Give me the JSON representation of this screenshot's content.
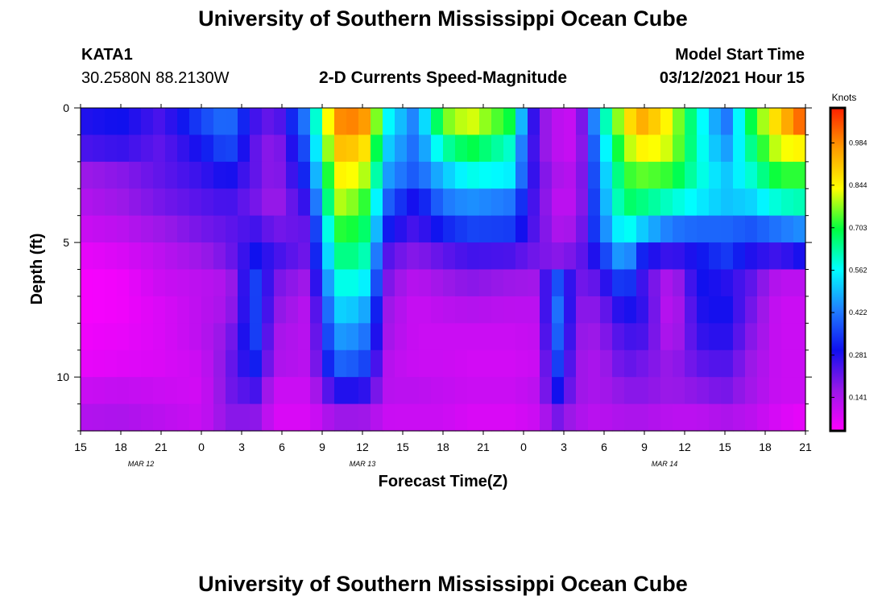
{
  "header": {
    "title": "University of Southern Mississippi Ocean Cube",
    "station_id": "KATA1",
    "station_coords": "30.2580N 88.2130W",
    "subtitle": "2-D Currents Speed-Magnitude",
    "model_label": "Model Start Time",
    "model_time": "03/12/2021 Hour 15"
  },
  "footer": {
    "title": "University of Southern Mississippi Ocean Cube"
  },
  "chart_data": {
    "type": "heatmap",
    "title": "2-D Currents Speed-Magnitude",
    "xlabel": "Forecast Time(Z)",
    "ylabel": "Depth (ft)",
    "x_ticks": [
      "15",
      "18",
      "21",
      "0",
      "3",
      "6",
      "9",
      "12",
      "15",
      "18",
      "21",
      "0",
      "3",
      "6",
      "9",
      "12",
      "15",
      "18",
      "21"
    ],
    "x_range_hours": [
      0,
      54
    ],
    "date_labels": [
      {
        "text": "MAR 12",
        "hour": 4.5
      },
      {
        "text": "MAR 13",
        "hour": 21
      },
      {
        "text": "MAR 14",
        "hour": 43.5
      }
    ],
    "y_ticks": [
      0,
      5,
      10
    ],
    "ylim": [
      0,
      12
    ],
    "y_inverted": true,
    "colorbar": {
      "label": "Knots",
      "ticks": [
        "0.141",
        "0.281",
        "0.422",
        "0.562",
        "0.703",
        "0.844",
        "0.984"
      ],
      "range": [
        0.03,
        1.1
      ],
      "colors": [
        "#ff00ff",
        "#9a18e8",
        "#1010ee",
        "#2080ff",
        "#00ffff",
        "#00ff40",
        "#ffff00",
        "#ff9c00",
        "#ff2000"
      ]
    },
    "row_depths_ft": [
      0.5,
      1.5,
      2.5,
      3.5,
      4.5,
      5.5,
      6.5,
      7.5,
      8.5,
      9.5,
      10.5,
      11.5
    ],
    "time_keys_hours": [
      0,
      3,
      6,
      9,
      11,
      13,
      14.5,
      17,
      19,
      21,
      23,
      25,
      27,
      29,
      32,
      34,
      35.5,
      37,
      38.5,
      40.5,
      42,
      44,
      46,
      48,
      50,
      52,
      54
    ],
    "values": [
      [
        0.28,
        0.3,
        0.24,
        0.36,
        0.42,
        0.25,
        0.2,
        0.45,
        0.98,
        1.0,
        0.55,
        0.42,
        0.75,
        0.82,
        0.7,
        0.2,
        0.12,
        0.1,
        0.5,
        0.85,
        0.95,
        0.82,
        0.6,
        0.4,
        0.7,
        0.9,
        1.05
      ],
      [
        0.24,
        0.26,
        0.22,
        0.3,
        0.38,
        0.22,
        0.16,
        0.4,
        0.92,
        0.9,
        0.5,
        0.4,
        0.62,
        0.7,
        0.6,
        0.2,
        0.12,
        0.1,
        0.45,
        0.78,
        0.85,
        0.8,
        0.6,
        0.45,
        0.65,
        0.82,
        0.85
      ],
      [
        0.16,
        0.18,
        0.22,
        0.26,
        0.3,
        0.22,
        0.16,
        0.35,
        0.85,
        0.82,
        0.45,
        0.38,
        0.5,
        0.58,
        0.55,
        0.22,
        0.14,
        0.12,
        0.42,
        0.72,
        0.75,
        0.72,
        0.6,
        0.5,
        0.6,
        0.72,
        0.72
      ],
      [
        0.13,
        0.16,
        0.2,
        0.23,
        0.25,
        0.2,
        0.15,
        0.28,
        0.8,
        0.75,
        0.38,
        0.28,
        0.42,
        0.45,
        0.42,
        0.22,
        0.12,
        0.12,
        0.4,
        0.68,
        0.65,
        0.6,
        0.55,
        0.5,
        0.52,
        0.6,
        0.62
      ],
      [
        0.1,
        0.12,
        0.16,
        0.2,
        0.22,
        0.25,
        0.2,
        0.22,
        0.72,
        0.7,
        0.3,
        0.24,
        0.32,
        0.36,
        0.35,
        0.22,
        0.14,
        0.15,
        0.38,
        0.6,
        0.5,
        0.42,
        0.4,
        0.4,
        0.38,
        0.42,
        0.45
      ],
      [
        0.06,
        0.08,
        0.12,
        0.16,
        0.2,
        0.3,
        0.25,
        0.2,
        0.65,
        0.65,
        0.22,
        0.18,
        0.22,
        0.25,
        0.24,
        0.2,
        0.18,
        0.2,
        0.3,
        0.5,
        0.3,
        0.25,
        0.3,
        0.35,
        0.28,
        0.25,
        0.3
      ],
      [
        0.04,
        0.05,
        0.1,
        0.12,
        0.14,
        0.36,
        0.2,
        0.15,
        0.58,
        0.58,
        0.18,
        0.12,
        0.16,
        0.18,
        0.16,
        0.15,
        0.38,
        0.2,
        0.22,
        0.38,
        0.24,
        0.12,
        0.3,
        0.28,
        0.22,
        0.12,
        0.12
      ],
      [
        0.04,
        0.05,
        0.08,
        0.12,
        0.15,
        0.36,
        0.18,
        0.12,
        0.52,
        0.5,
        0.15,
        0.1,
        0.12,
        0.13,
        0.12,
        0.12,
        0.42,
        0.18,
        0.18,
        0.3,
        0.26,
        0.1,
        0.28,
        0.3,
        0.2,
        0.1,
        0.1
      ],
      [
        0.05,
        0.06,
        0.08,
        0.12,
        0.18,
        0.36,
        0.15,
        0.12,
        0.46,
        0.44,
        0.14,
        0.1,
        0.1,
        0.1,
        0.1,
        0.11,
        0.4,
        0.17,
        0.16,
        0.25,
        0.24,
        0.12,
        0.26,
        0.28,
        0.18,
        0.1,
        0.1
      ],
      [
        0.06,
        0.07,
        0.08,
        0.1,
        0.2,
        0.32,
        0.14,
        0.12,
        0.4,
        0.38,
        0.12,
        0.1,
        0.1,
        0.09,
        0.09,
        0.1,
        0.36,
        0.16,
        0.14,
        0.22,
        0.2,
        0.16,
        0.22,
        0.24,
        0.16,
        0.1,
        0.1
      ],
      [
        0.1,
        0.11,
        0.1,
        0.09,
        0.2,
        0.25,
        0.1,
        0.1,
        0.28,
        0.28,
        0.12,
        0.12,
        0.11,
        0.1,
        0.1,
        0.12,
        0.3,
        0.16,
        0.14,
        0.18,
        0.18,
        0.16,
        0.18,
        0.2,
        0.15,
        0.1,
        0.1
      ],
      [
        0.13,
        0.14,
        0.12,
        0.1,
        0.18,
        0.18,
        0.08,
        0.08,
        0.16,
        0.16,
        0.1,
        0.1,
        0.1,
        0.08,
        0.08,
        0.1,
        0.2,
        0.14,
        0.12,
        0.14,
        0.14,
        0.12,
        0.12,
        0.14,
        0.12,
        0.08,
        0.06
      ]
    ]
  }
}
